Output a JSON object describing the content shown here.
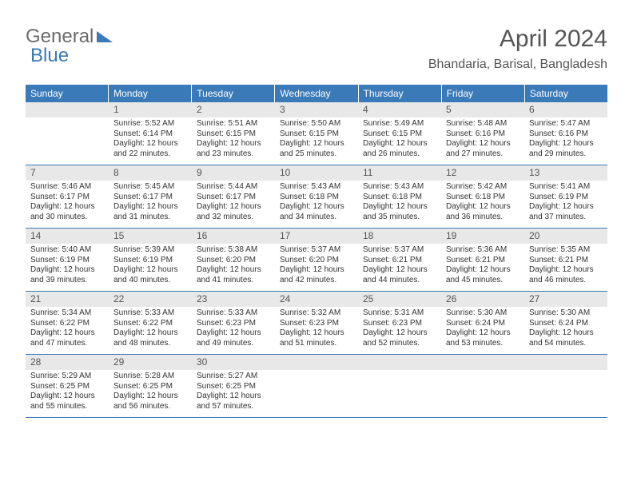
{
  "logo": {
    "part1": "General",
    "part2": "Blue"
  },
  "title": "April 2024",
  "subtitle": "Bhandaria, Barisal, Bangladesh",
  "colors": {
    "header_bg": "#3a7ab8",
    "header_text": "#ffffff",
    "daynum_bg": "#e8e8e8",
    "text": "#333333",
    "week_border": "#3a7ab8"
  },
  "dow": [
    "Sunday",
    "Monday",
    "Tuesday",
    "Wednesday",
    "Thursday",
    "Friday",
    "Saturday"
  ],
  "weeks": [
    [
      {
        "blank": true
      },
      {
        "n": "1",
        "sunrise": "5:52 AM",
        "sunset": "6:14 PM",
        "dh": "12",
        "dm": "22"
      },
      {
        "n": "2",
        "sunrise": "5:51 AM",
        "sunset": "6:15 PM",
        "dh": "12",
        "dm": "23"
      },
      {
        "n": "3",
        "sunrise": "5:50 AM",
        "sunset": "6:15 PM",
        "dh": "12",
        "dm": "25"
      },
      {
        "n": "4",
        "sunrise": "5:49 AM",
        "sunset": "6:15 PM",
        "dh": "12",
        "dm": "26"
      },
      {
        "n": "5",
        "sunrise": "5:48 AM",
        "sunset": "6:16 PM",
        "dh": "12",
        "dm": "27"
      },
      {
        "n": "6",
        "sunrise": "5:47 AM",
        "sunset": "6:16 PM",
        "dh": "12",
        "dm": "29"
      }
    ],
    [
      {
        "n": "7",
        "sunrise": "5:46 AM",
        "sunset": "6:17 PM",
        "dh": "12",
        "dm": "30"
      },
      {
        "n": "8",
        "sunrise": "5:45 AM",
        "sunset": "6:17 PM",
        "dh": "12",
        "dm": "31"
      },
      {
        "n": "9",
        "sunrise": "5:44 AM",
        "sunset": "6:17 PM",
        "dh": "12",
        "dm": "32"
      },
      {
        "n": "10",
        "sunrise": "5:43 AM",
        "sunset": "6:18 PM",
        "dh": "12",
        "dm": "34"
      },
      {
        "n": "11",
        "sunrise": "5:43 AM",
        "sunset": "6:18 PM",
        "dh": "12",
        "dm": "35"
      },
      {
        "n": "12",
        "sunrise": "5:42 AM",
        "sunset": "6:18 PM",
        "dh": "12",
        "dm": "36"
      },
      {
        "n": "13",
        "sunrise": "5:41 AM",
        "sunset": "6:19 PM",
        "dh": "12",
        "dm": "37"
      }
    ],
    [
      {
        "n": "14",
        "sunrise": "5:40 AM",
        "sunset": "6:19 PM",
        "dh": "12",
        "dm": "39"
      },
      {
        "n": "15",
        "sunrise": "5:39 AM",
        "sunset": "6:19 PM",
        "dh": "12",
        "dm": "40"
      },
      {
        "n": "16",
        "sunrise": "5:38 AM",
        "sunset": "6:20 PM",
        "dh": "12",
        "dm": "41"
      },
      {
        "n": "17",
        "sunrise": "5:37 AM",
        "sunset": "6:20 PM",
        "dh": "12",
        "dm": "42"
      },
      {
        "n": "18",
        "sunrise": "5:37 AM",
        "sunset": "6:21 PM",
        "dh": "12",
        "dm": "44"
      },
      {
        "n": "19",
        "sunrise": "5:36 AM",
        "sunset": "6:21 PM",
        "dh": "12",
        "dm": "45"
      },
      {
        "n": "20",
        "sunrise": "5:35 AM",
        "sunset": "6:21 PM",
        "dh": "12",
        "dm": "46"
      }
    ],
    [
      {
        "n": "21",
        "sunrise": "5:34 AM",
        "sunset": "6:22 PM",
        "dh": "12",
        "dm": "47"
      },
      {
        "n": "22",
        "sunrise": "5:33 AM",
        "sunset": "6:22 PM",
        "dh": "12",
        "dm": "48"
      },
      {
        "n": "23",
        "sunrise": "5:33 AM",
        "sunset": "6:23 PM",
        "dh": "12",
        "dm": "49"
      },
      {
        "n": "24",
        "sunrise": "5:32 AM",
        "sunset": "6:23 PM",
        "dh": "12",
        "dm": "51"
      },
      {
        "n": "25",
        "sunrise": "5:31 AM",
        "sunset": "6:23 PM",
        "dh": "12",
        "dm": "52"
      },
      {
        "n": "26",
        "sunrise": "5:30 AM",
        "sunset": "6:24 PM",
        "dh": "12",
        "dm": "53"
      },
      {
        "n": "27",
        "sunrise": "5:30 AM",
        "sunset": "6:24 PM",
        "dh": "12",
        "dm": "54"
      }
    ],
    [
      {
        "n": "28",
        "sunrise": "5:29 AM",
        "sunset": "6:25 PM",
        "dh": "12",
        "dm": "55"
      },
      {
        "n": "29",
        "sunrise": "5:28 AM",
        "sunset": "6:25 PM",
        "dh": "12",
        "dm": "56"
      },
      {
        "n": "30",
        "sunrise": "5:27 AM",
        "sunset": "6:25 PM",
        "dh": "12",
        "dm": "57"
      },
      {
        "blank": true
      },
      {
        "blank": true
      },
      {
        "blank": true
      },
      {
        "blank": true
      }
    ]
  ],
  "labels": {
    "sunrise": "Sunrise:",
    "sunset": "Sunset:",
    "daylight": "Daylight:"
  }
}
